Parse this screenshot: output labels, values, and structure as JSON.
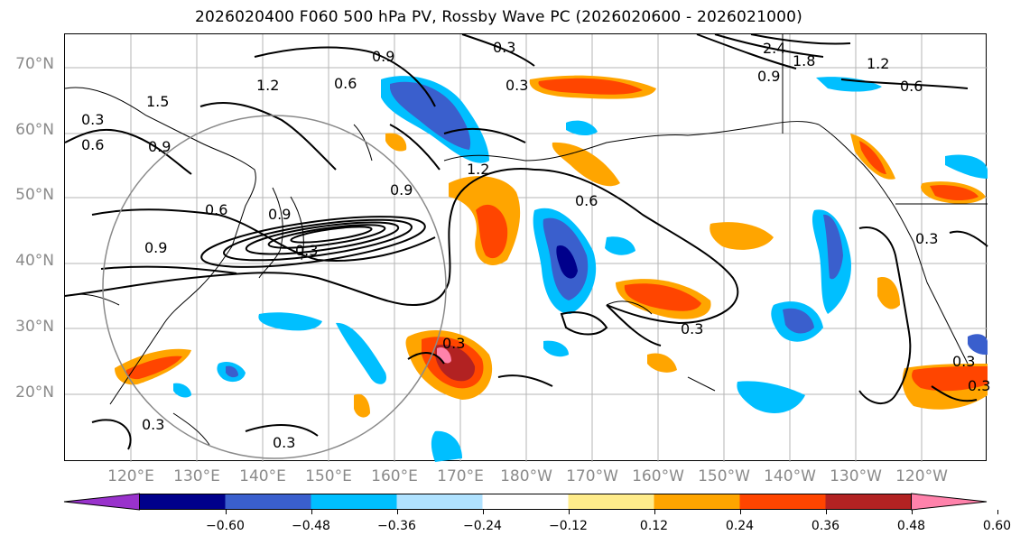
{
  "title": "2026020400 F060 500 hPa PV, Rossby Wave PC (2026020600 - 2026021000)",
  "lat_labels": [
    "70°N",
    "60°N",
    "50°N",
    "40°N",
    "30°N",
    "20°N"
  ],
  "lon_labels": [
    "120°E",
    "130°E",
    "140°E",
    "150°E",
    "160°E",
    "170°E",
    "180°W",
    "170°W",
    "160°W",
    "150°W",
    "140°W",
    "130°W",
    "120°W"
  ],
  "colorbar": {
    "colors": [
      "#9932cc",
      "#00008b",
      "#3a5fcd",
      "#00bfff",
      "#b0e2ff",
      "#ffffff",
      "#ffec8b",
      "#ffa500",
      "#ff4500",
      "#b22222",
      "#ff82ab"
    ],
    "tick_labels": [
      "−0.60",
      "−0.48",
      "−0.36",
      "−0.24",
      "−0.12",
      "0.12",
      "0.24",
      "0.36",
      "0.48",
      "0.60"
    ]
  },
  "contour_labels": [
    "0.3",
    "0.3",
    "2.4",
    "1.8",
    "0.9",
    "1.2",
    "0.6",
    "0.6",
    "1.5",
    "0.9",
    "0.6",
    "0.9",
    "1.2",
    "0.3",
    "0.9",
    "1.2",
    "0.6",
    "0.9",
    "0.3",
    "0.3",
    "0.3",
    "0.3",
    "0.3",
    "0.3",
    "0.6",
    "0.9",
    "0.3",
    "0.3"
  ]
}
